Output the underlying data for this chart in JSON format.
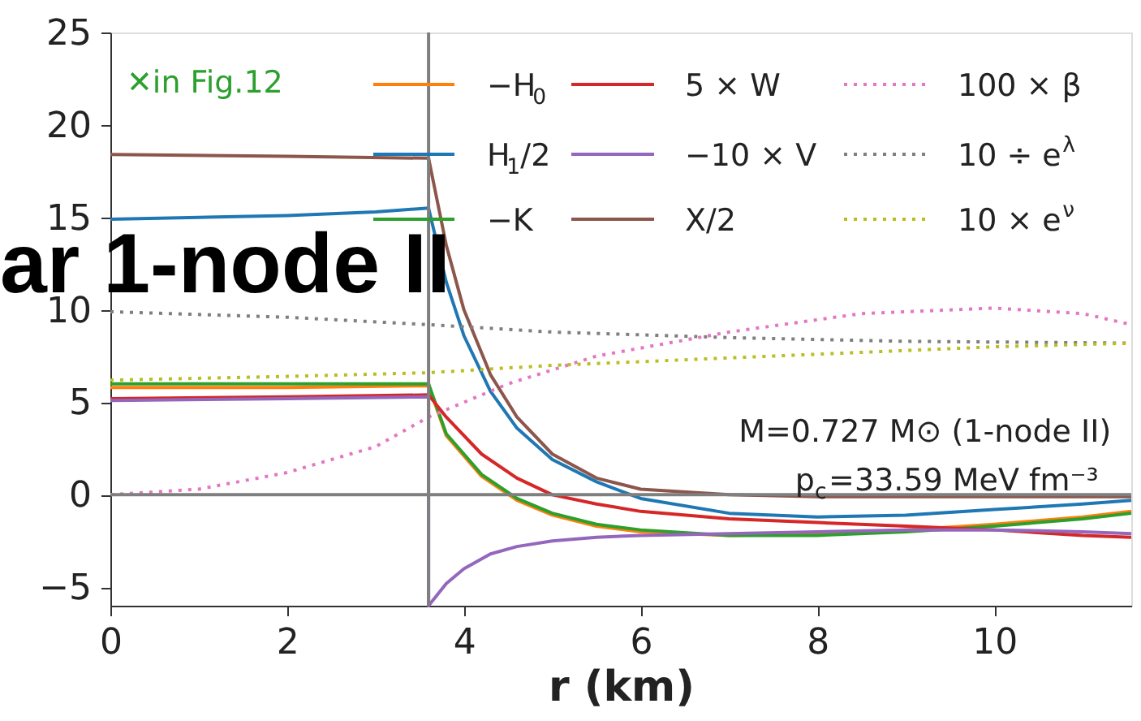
{
  "chart_data": {
    "type": "line",
    "xlabel": "r (km)",
    "xlim": [
      0,
      11.55
    ],
    "ylim": [
      -6,
      25
    ],
    "xticks": [
      0,
      2,
      4,
      6,
      8,
      10
    ],
    "yticks": [
      -5,
      0,
      5,
      10,
      15,
      20,
      25
    ],
    "grid": false,
    "legend": "top",
    "marker": "none",
    "ref_lines": [
      {
        "axis": "x",
        "value": 3.6,
        "color": "#7f7f7f"
      },
      {
        "axis": "y",
        "value": 0,
        "color": "#7f7f7f"
      }
    ],
    "annotations": [
      "✕in Fig.12",
      "M=0.727 M⊙ (1-node II)",
      "p$_{c}$=33.59 MeV fm⁻³",
      "ar 1-node II"
    ],
    "series": [
      {
        "name": "−H$_{0}$",
        "color": "#ff7f0e",
        "line_style": "solid",
        "x": [
          0,
          2,
          3.6,
          3.8,
          4.2,
          4.6,
          5,
          5.5,
          6,
          7,
          8,
          9,
          10,
          11,
          11.55
        ],
        "values": [
          5.8,
          5.8,
          5.9,
          3.2,
          1.0,
          -0.3,
          -1.1,
          -1.7,
          -2.0,
          -2.2,
          -2.1,
          -1.9,
          -1.6,
          -1.2,
          -0.9
        ]
      },
      {
        "name": "H$_{1}$/2",
        "color": "#1f77b4",
        "line_style": "solid",
        "x": [
          0,
          1,
          2,
          3,
          3.6,
          3.8,
          4,
          4.3,
          4.6,
          5,
          5.5,
          6,
          7,
          8,
          9,
          10,
          11,
          11.55
        ],
        "values": [
          14.9,
          15.0,
          15.1,
          15.3,
          15.5,
          11.5,
          8.6,
          5.6,
          3.6,
          1.9,
          0.7,
          -0.2,
          -1.0,
          -1.2,
          -1.1,
          -0.8,
          -0.5,
          -0.3
        ]
      },
      {
        "name": "−K",
        "color": "#2ca02c",
        "line_style": "solid",
        "x": [
          0,
          2,
          3.6,
          3.8,
          4.2,
          4.6,
          5,
          5.5,
          6,
          7,
          8,
          9,
          10,
          11,
          11.55
        ],
        "values": [
          6.0,
          6.0,
          6.0,
          3.3,
          1.1,
          -0.2,
          -1.0,
          -1.6,
          -1.9,
          -2.2,
          -2.2,
          -2.0,
          -1.7,
          -1.3,
          -1.0
        ]
      },
      {
        "name": "5 × W",
        "color": "#d62728",
        "line_style": "solid",
        "x": [
          0,
          2,
          3.6,
          3.8,
          4.2,
          4.6,
          5,
          5.5,
          6,
          7,
          8,
          9,
          10,
          11,
          11.55
        ],
        "values": [
          5.2,
          5.3,
          5.4,
          4.2,
          2.2,
          0.9,
          0.0,
          -0.5,
          -0.9,
          -1.3,
          -1.5,
          -1.7,
          -1.9,
          -2.2,
          -2.3
        ]
      },
      {
        "name": "−10 × V",
        "color": "#9467bd",
        "line_style": "solid",
        "x": [
          0,
          2,
          3.6,
          3.6,
          3.8,
          4,
          4.3,
          4.6,
          5,
          5.5,
          6,
          7,
          8,
          9,
          10,
          11,
          11.55
        ],
        "values": [
          5.1,
          5.2,
          5.3,
          -6.0,
          -4.8,
          -4.0,
          -3.2,
          -2.8,
          -2.5,
          -2.3,
          -2.2,
          -2.1,
          -2.0,
          -1.9,
          -1.9,
          -2.0,
          -2.1
        ]
      },
      {
        "name": "X/2",
        "color": "#8c564b",
        "line_style": "solid",
        "x": [
          0,
          2,
          3.6,
          3.8,
          4,
          4.3,
          4.6,
          5,
          5.5,
          6,
          7,
          8,
          9,
          10,
          11,
          11.55
        ],
        "values": [
          18.4,
          18.3,
          18.2,
          13.5,
          10.0,
          6.5,
          4.2,
          2.2,
          0.9,
          0.3,
          0.0,
          -0.1,
          -0.1,
          -0.1,
          -0.1,
          -0.1
        ]
      },
      {
        "name": "100 × β",
        "color": "#e377c2",
        "line_style": "dotted",
        "x": [
          0,
          1,
          2,
          3,
          3.6,
          4.5,
          5.5,
          7,
          8.5,
          10,
          11,
          11.55
        ],
        "values": [
          0.0,
          0.3,
          1.2,
          2.6,
          4.2,
          6.0,
          7.5,
          8.8,
          9.8,
          10.1,
          9.8,
          9.2
        ]
      },
      {
        "name": "10 ÷ e$^{λ}$",
        "color": "#7f7f7f",
        "line_style": "dotted",
        "x": [
          0,
          2,
          3.6,
          5,
          7,
          9,
          11.55
        ],
        "values": [
          9.9,
          9.6,
          9.2,
          8.8,
          8.5,
          8.3,
          8.2
        ]
      },
      {
        "name": "10 × e$^{ν}$",
        "color": "#bcbd22",
        "line_style": "dotted",
        "x": [
          0,
          2,
          3.6,
          5,
          7.5,
          10,
          11.55
        ],
        "values": [
          6.2,
          6.4,
          6.6,
          7.0,
          7.5,
          8.0,
          8.2
        ]
      }
    ]
  }
}
